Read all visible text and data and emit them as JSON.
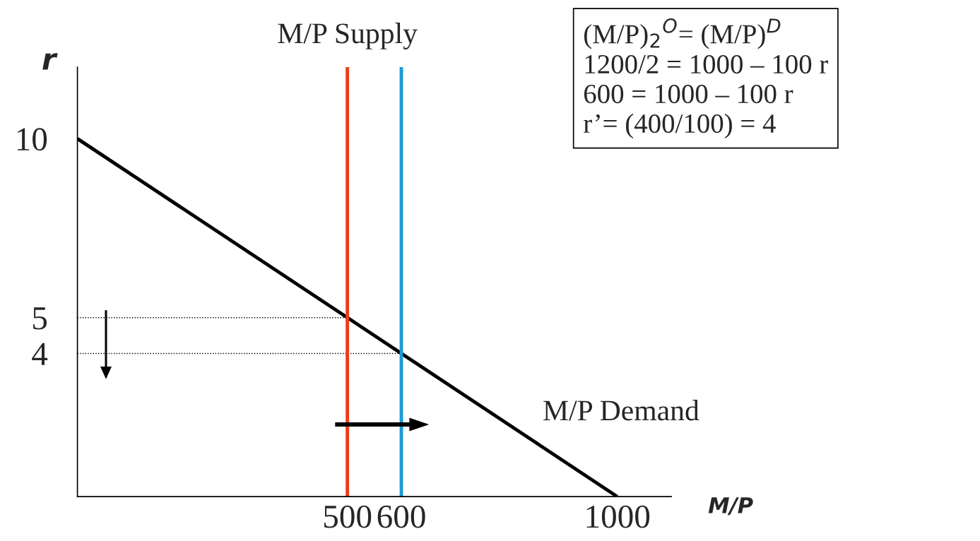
{
  "chart_data": {
    "type": "line",
    "xlabel": "M/P",
    "ylabel": "r",
    "xlim": [
      0,
      1100
    ],
    "ylim": [
      0,
      12
    ],
    "xticks": [
      500,
      600,
      1000
    ],
    "yticks": [
      4,
      5,
      10
    ],
    "series": [
      {
        "x": [
          0,
          1000
        ],
        "values": [
          10,
          0
        ],
        "color": "#000000"
      },
      {
        "x": [
          0,
          500
        ],
        "values": [
          5,
          5
        ],
        "color": "#000000",
        "line_style": "dotted"
      },
      {
        "x": [
          0,
          600
        ],
        "values": [
          4,
          4
        ],
        "color": "#000000",
        "line_style": "dotted"
      }
    ],
    "ref_lines": [
      {
        "axis": "x",
        "value": 500,
        "label": "M/P Supply",
        "color": "#f03c14"
      },
      {
        "axis": "x",
        "value": 600,
        "color": "#1a9bd7"
      }
    ],
    "annotations": [
      "M/P Demand",
      "(M/P)$_{2}$$^{O}$= (M/P)$^{D}$\n1200/2 = 1000 – 100 r\n600 = 1000 – 100 r\nr’= (400/100) = 4"
    ]
  }
}
